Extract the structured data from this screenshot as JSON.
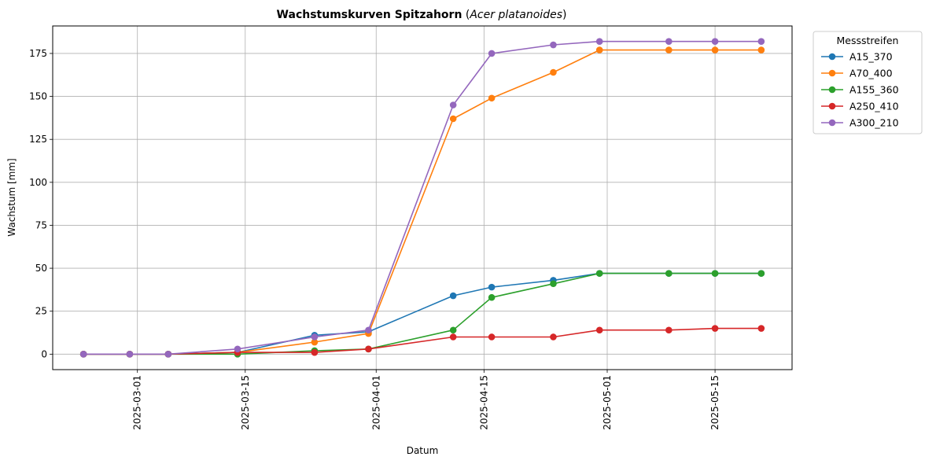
{
  "chart_data": {
    "type": "line",
    "title_bold": "Wachstumskurven Spitzahorn",
    "title_italic": "Acer platanoides",
    "xlabel": "Datum",
    "ylabel": "Wachstum [mm]",
    "x": [
      "2025-02-22",
      "2025-02-28",
      "2025-03-05",
      "2025-03-14",
      "2025-03-24",
      "2025-03-31",
      "2025-04-11",
      "2025-04-16",
      "2025-04-24",
      "2025-04-30",
      "2025-05-09",
      "2025-05-15",
      "2025-05-21"
    ],
    "xlim": [
      "2025-02-18",
      "2025-05-25"
    ],
    "ylim": [
      -9,
      191
    ],
    "yticks": [
      0,
      25,
      50,
      75,
      100,
      125,
      150,
      175
    ],
    "xticks": [
      "2025-03-01",
      "2025-03-15",
      "2025-04-01",
      "2025-04-15",
      "2025-05-01",
      "2025-05-15"
    ],
    "grid": true,
    "legend": {
      "title": "Messstreifen",
      "placement": "outside-top-right"
    },
    "series": [
      {
        "name": "A15_370",
        "color": "#1f77b4",
        "values": [
          0,
          0,
          0,
          1,
          11,
          13,
          34,
          39,
          43,
          47,
          47,
          47,
          47
        ]
      },
      {
        "name": "A70_400",
        "color": "#ff7f0e",
        "values": [
          0,
          0,
          0,
          1,
          7,
          12,
          137,
          149,
          164,
          177,
          177,
          177,
          177
        ]
      },
      {
        "name": "A155_360",
        "color": "#2ca02c",
        "values": [
          0,
          0,
          0,
          0,
          2,
          3,
          14,
          33,
          41,
          47,
          47,
          47,
          47
        ]
      },
      {
        "name": "A250_410",
        "color": "#d62728",
        "values": [
          0,
          0,
          0,
          1,
          1,
          3,
          10,
          10,
          10,
          14,
          14,
          15,
          15
        ]
      },
      {
        "name": "A300_210",
        "color": "#9467bd",
        "values": [
          0,
          0,
          0,
          3,
          10,
          14,
          145,
          175,
          180,
          182,
          182,
          182,
          182
        ]
      }
    ]
  }
}
